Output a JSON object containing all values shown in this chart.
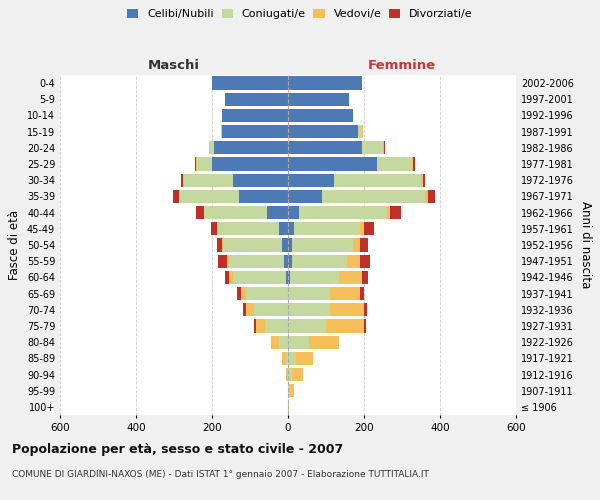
{
  "age_groups": [
    "100+",
    "95-99",
    "90-94",
    "85-89",
    "80-84",
    "75-79",
    "70-74",
    "65-69",
    "60-64",
    "55-59",
    "50-54",
    "45-49",
    "40-44",
    "35-39",
    "30-34",
    "25-29",
    "20-24",
    "15-19",
    "10-14",
    "5-9",
    "0-4"
  ],
  "birth_years": [
    "≤ 1906",
    "1907-1911",
    "1912-1916",
    "1917-1921",
    "1922-1926",
    "1927-1931",
    "1932-1936",
    "1937-1941",
    "1942-1946",
    "1947-1951",
    "1952-1956",
    "1957-1961",
    "1962-1966",
    "1967-1971",
    "1972-1976",
    "1977-1981",
    "1982-1986",
    "1987-1991",
    "1992-1996",
    "1997-2001",
    "2002-2006"
  ],
  "maschi": {
    "celibe": [
      0,
      0,
      0,
      0,
      0,
      0,
      0,
      0,
      5,
      10,
      15,
      25,
      55,
      130,
      145,
      200,
      195,
      175,
      175,
      165,
      200
    ],
    "coniugato": [
      0,
      0,
      0,
      5,
      25,
      60,
      90,
      110,
      140,
      145,
      155,
      160,
      165,
      155,
      130,
      40,
      10,
      2,
      0,
      0,
      0
    ],
    "vedovo": [
      0,
      0,
      5,
      10,
      20,
      25,
      20,
      15,
      10,
      5,
      3,
      2,
      2,
      2,
      2,
      2,
      2,
      0,
      0,
      0,
      0
    ],
    "divorziato": [
      0,
      0,
      0,
      0,
      0,
      5,
      8,
      8,
      10,
      25,
      15,
      15,
      20,
      15,
      5,
      2,
      2,
      0,
      0,
      0,
      0
    ]
  },
  "femmine": {
    "nubile": [
      0,
      0,
      0,
      0,
      0,
      0,
      0,
      0,
      5,
      10,
      10,
      15,
      30,
      90,
      120,
      235,
      195,
      185,
      170,
      160,
      195
    ],
    "coniugata": [
      0,
      5,
      10,
      20,
      55,
      100,
      110,
      110,
      130,
      145,
      160,
      175,
      230,
      270,
      230,
      90,
      55,
      10,
      0,
      0,
      0
    ],
    "vedova": [
      2,
      10,
      30,
      45,
      80,
      100,
      90,
      80,
      60,
      35,
      20,
      10,
      8,
      8,
      5,
      5,
      2,
      2,
      0,
      0,
      0
    ],
    "divorziata": [
      0,
      0,
      0,
      0,
      0,
      5,
      8,
      10,
      15,
      25,
      20,
      25,
      30,
      20,
      5,
      5,
      2,
      0,
      0,
      0,
      0
    ]
  },
  "colors": {
    "celibe": "#4d7ab5",
    "coniugato": "#c5d8a0",
    "vedovo": "#f5c05a",
    "divorziato": "#c0302a"
  },
  "xlim": 600,
  "title": "Popolazione per età, sesso e stato civile - 2007",
  "subtitle": "COMUNE DI GIARDINI-NAXOS (ME) - Dati ISTAT 1° gennaio 2007 - Elaborazione TUTTITALIA.IT",
  "ylabel": "Fasce di età",
  "ylabel_right": "Anni di nascita",
  "xlabel_maschi": "Maschi",
  "xlabel_femmine": "Femmine",
  "bg_color": "#f0f0f0",
  "plot_bg": "#ffffff"
}
